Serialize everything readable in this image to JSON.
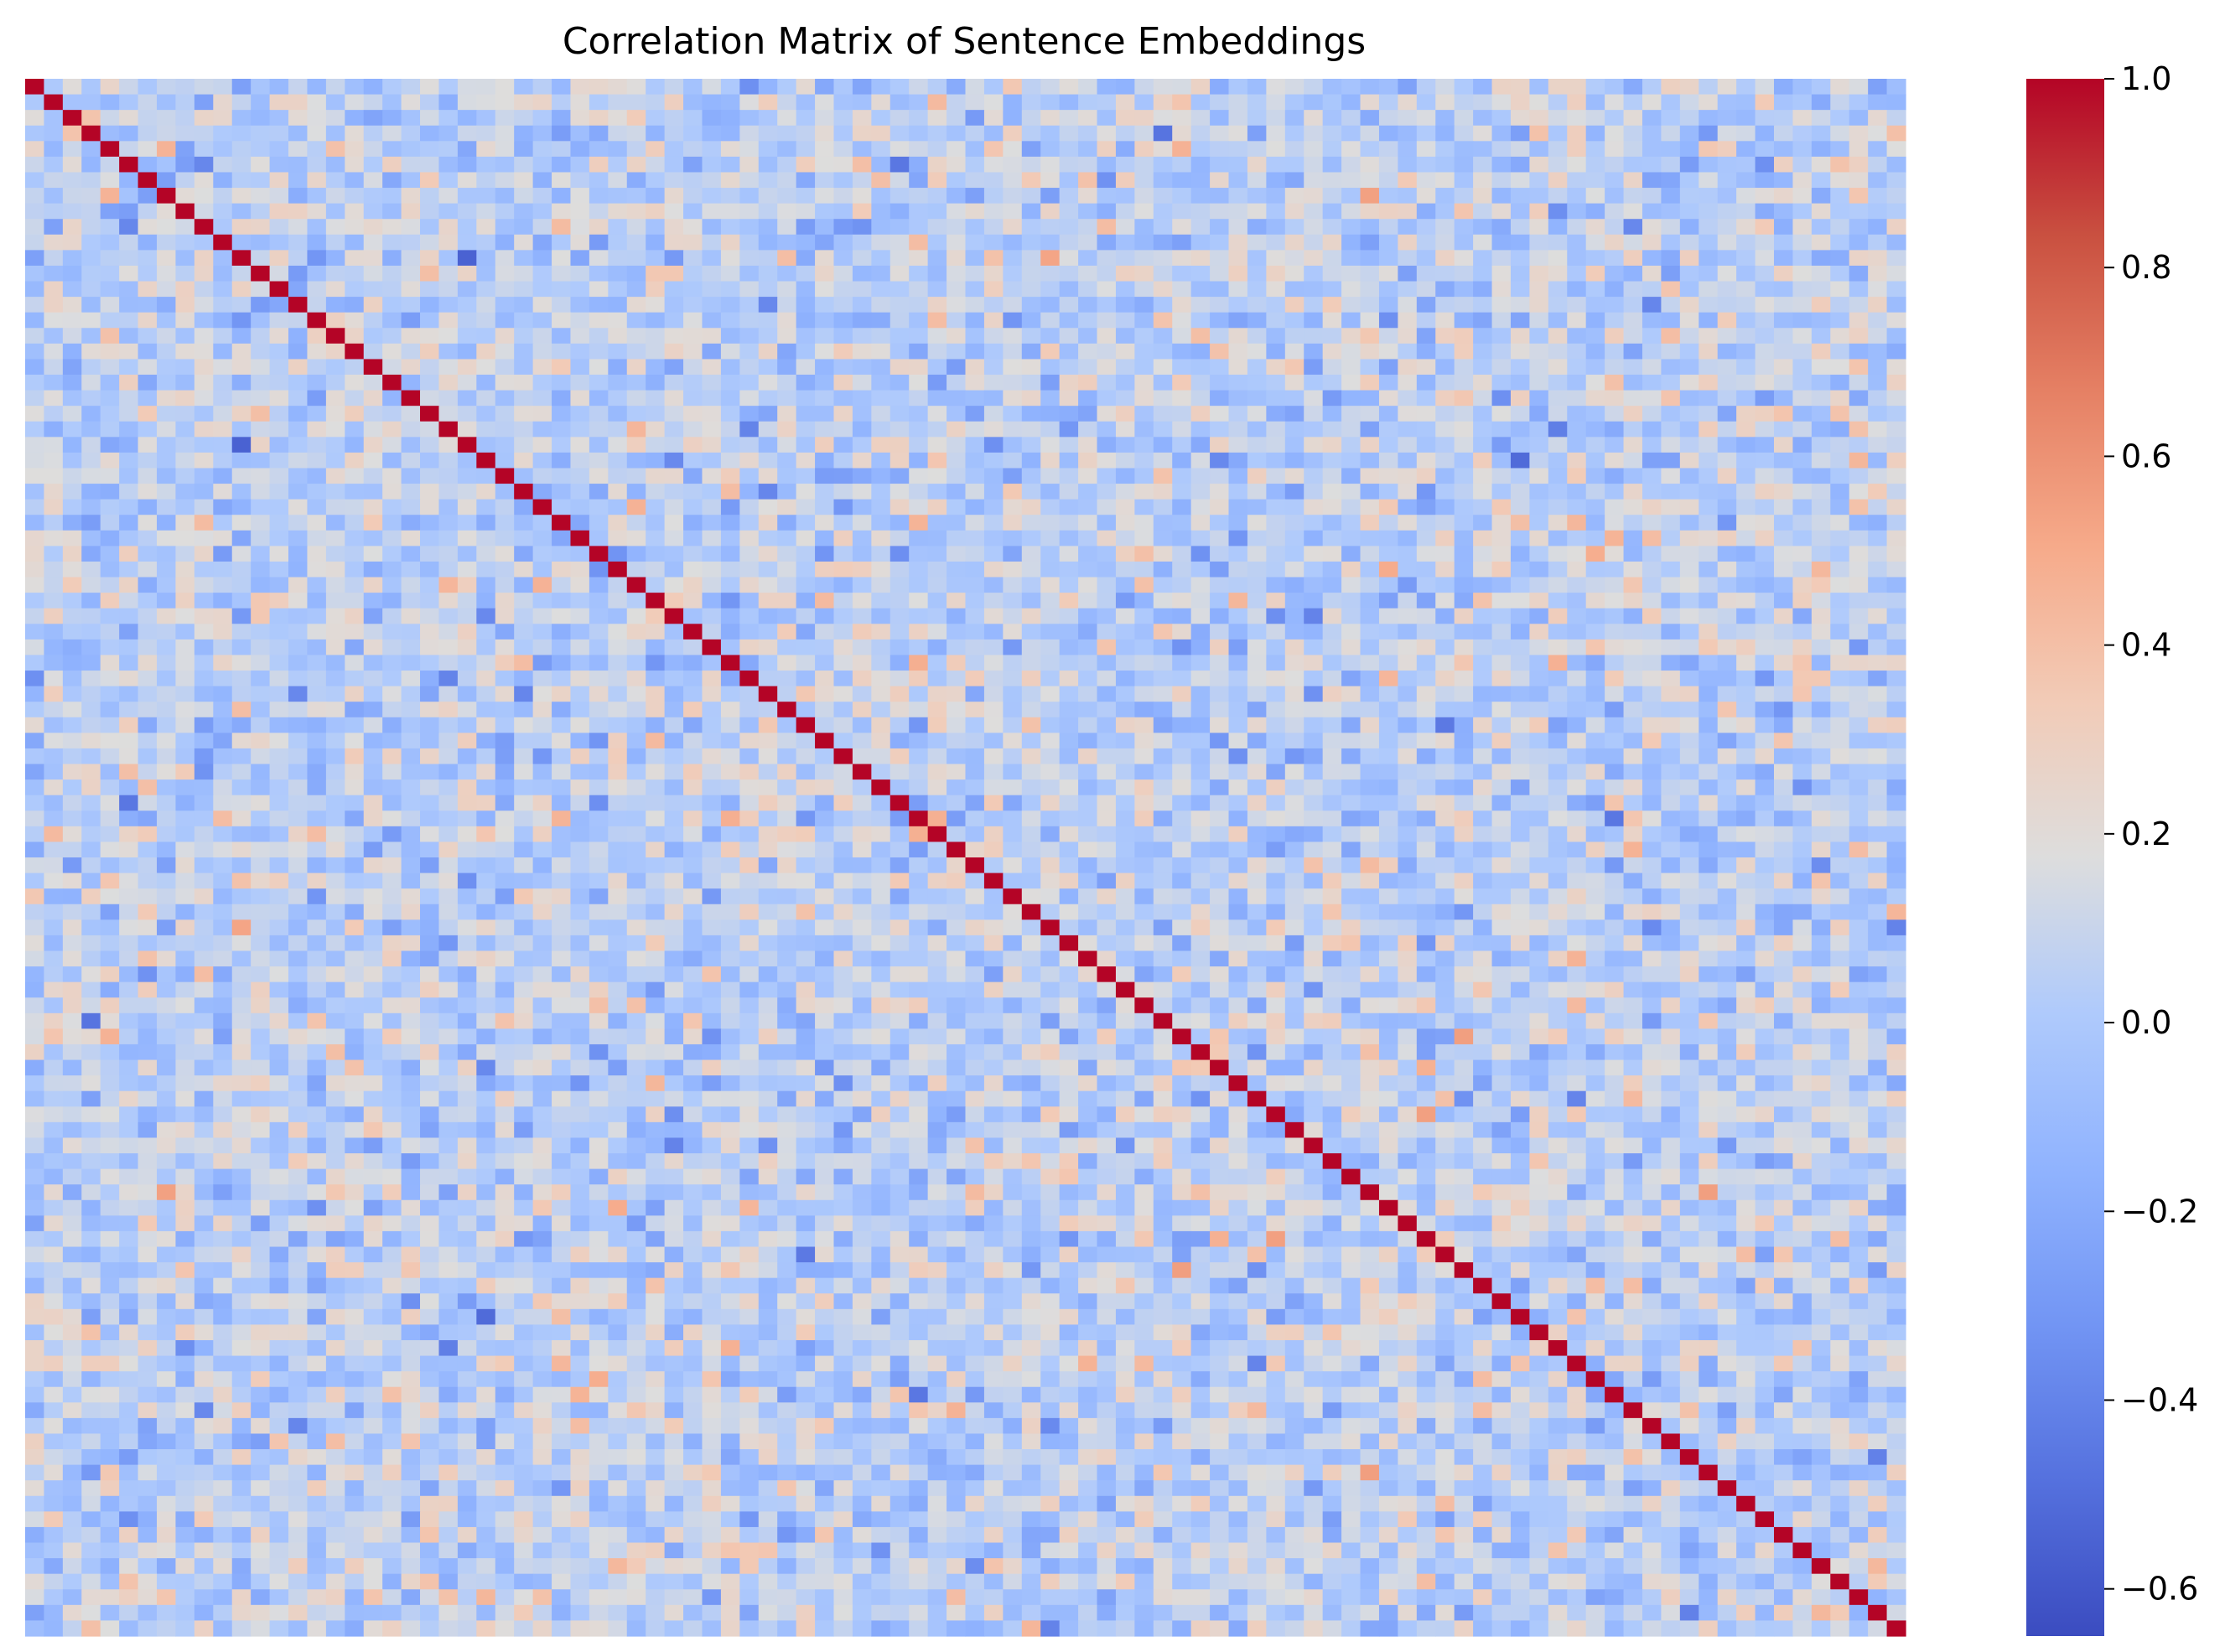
{
  "chart_data": {
    "type": "heatmap",
    "title": "Correlation Matrix of Sentence Embeddings",
    "xlabel": "",
    "ylabel": "",
    "rows": 100,
    "cols": 100,
    "diagonal_value": 1.0,
    "off_diagonal_range": [
      -0.65,
      0.55
    ],
    "off_diagonal_typical": 0.05,
    "colormap": "coolwarm",
    "colorbar": {
      "range": [
        -0.65,
        1.0
      ],
      "ticks": [
        {
          "value": 1.0,
          "label": "1.0"
        },
        {
          "value": 0.8,
          "label": "0.8"
        },
        {
          "value": 0.6,
          "label": "0.6"
        },
        {
          "value": 0.4,
          "label": "0.4"
        },
        {
          "value": 0.2,
          "label": "0.2"
        },
        {
          "value": 0.0,
          "label": "0.0"
        },
        {
          "value": -0.2,
          "label": "−0.2"
        },
        {
          "value": -0.4,
          "label": "−0.4"
        },
        {
          "value": -0.6,
          "label": "−0.6"
        }
      ]
    },
    "colors": {
      "min": "#3b4cc0",
      "mid": "#dddddd",
      "max": "#b40426"
    },
    "grid": false,
    "legend": "colorbar-right"
  }
}
